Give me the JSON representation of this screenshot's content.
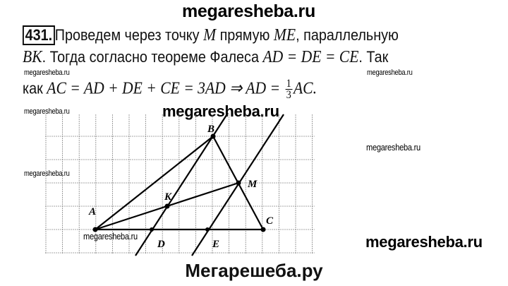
{
  "watermark": "megaresheba.ru",
  "problem_number": "431.",
  "text": {
    "line1_a": "Проведем через точку ",
    "line1_M": "M",
    "line1_b": " прямую ",
    "line1_ME": "ME",
    "line1_c": ", параллельную",
    "line2_BK": "BK",
    "line2_a": ". Тогда согласно теореме Фалеса ",
    "line2_eq": "AD = DE = CE",
    "line2_b": ". Так",
    "line3_a": "как ",
    "line3_eq": "AC = AD + DE + CE = 3AD ⇒ AD = ",
    "frac_num": "1",
    "frac_den": "3",
    "line3_b": "AC."
  },
  "diagram": {
    "points": {
      "A": "A",
      "B": "B",
      "C": "C",
      "K": "K",
      "M": "M",
      "D": "D",
      "E": "E"
    }
  },
  "footer": "Мегарешеба.ру"
}
